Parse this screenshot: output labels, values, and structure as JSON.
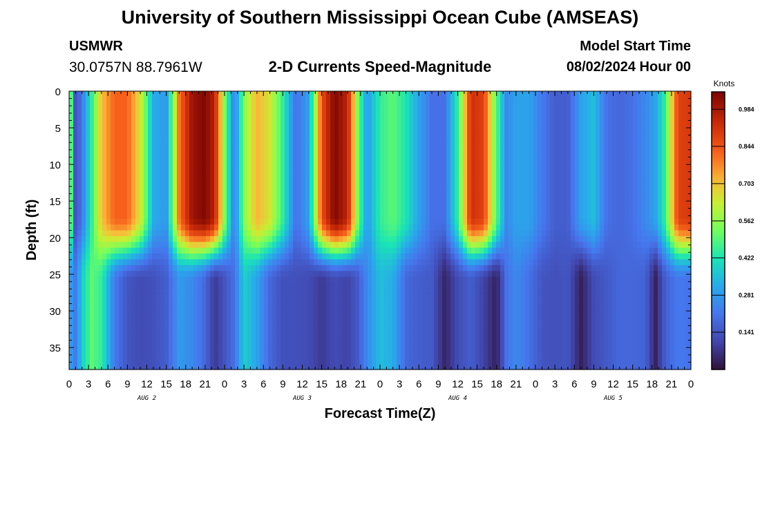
{
  "header": {
    "title": "University of Southern Mississippi Ocean Cube (AMSEAS)",
    "station_name": "USMWR",
    "station_coords": "30.0757N  88.7961W",
    "plot_title": "2-D Currents Speed-Magnitude",
    "model_start_label": "Model Start Time",
    "model_start_value": "08/02/2024 Hour 00"
  },
  "footer": {
    "title": "University of Southern Mississippi Ocean Cube (AMSEAS)"
  },
  "chart_data": {
    "type": "heatmap",
    "title": "2-D Currents Speed-Magnitude",
    "xlabel": "Forecast Time(Z)",
    "ylabel": "Depth (ft)",
    "x_range_hours": [
      0,
      96
    ],
    "y_range_ft": [
      0,
      38
    ],
    "x_ticks": [
      "0",
      "3",
      "6",
      "9",
      "12",
      "15",
      "18",
      "21",
      "0",
      "3",
      "6",
      "9",
      "12",
      "15",
      "18",
      "21",
      "0",
      "3",
      "6",
      "9",
      "12",
      "15",
      "18",
      "21",
      "0",
      "3",
      "6",
      "9",
      "12",
      "15",
      "18",
      "21",
      "0"
    ],
    "y_ticks": [
      "0",
      "5",
      "10",
      "15",
      "20",
      "25",
      "30",
      "35"
    ],
    "day_labels": [
      {
        "label": "AUG 2",
        "hour": 12
      },
      {
        "label": "AUG 3",
        "hour": 36
      },
      {
        "label": "AUG 4",
        "hour": 60
      },
      {
        "label": "AUG 5",
        "hour": 84
      }
    ],
    "colorbar": {
      "units": "Knots",
      "min": 0.0,
      "max": 1.05,
      "tick_values": [
        0.141,
        0.281,
        0.422,
        0.562,
        0.703,
        0.844,
        0.984
      ],
      "tick_labels": [
        "0.141",
        "0.281",
        "0.422",
        "0.562",
        "0.703",
        "0.844",
        "0.984"
      ]
    },
    "columns": [
      {
        "t": 0,
        "top": 0.65,
        "bot": 0.3
      },
      {
        "t": 1,
        "top": 0.12,
        "bot": 0.22
      },
      {
        "t": 2,
        "top": 0.22,
        "bot": 0.38
      },
      {
        "t": 3.5,
        "top": 0.45,
        "bot": 0.5
      },
      {
        "t": 5,
        "top": 0.7,
        "bot": 0.45
      },
      {
        "t": 7,
        "top": 0.82,
        "bot": 0.22
      },
      {
        "t": 9,
        "top": 0.82,
        "bot": 0.14
      },
      {
        "t": 11,
        "top": 0.65,
        "bot": 0.12
      },
      {
        "t": 13,
        "top": 0.32,
        "bot": 0.13
      },
      {
        "t": 15,
        "top": 0.28,
        "bot": 0.16
      },
      {
        "t": 17,
        "top": 0.8,
        "bot": 0.28
      },
      {
        "t": 19,
        "top": 1.0,
        "bot": 0.25
      },
      {
        "t": 21,
        "top": 1.04,
        "bot": 0.18
      },
      {
        "t": 22.5,
        "top": 0.95,
        "bot": 0.08
      },
      {
        "t": 24,
        "top": 0.55,
        "bot": 0.14
      },
      {
        "t": 25.5,
        "top": 0.22,
        "bot": 0.2
      },
      {
        "t": 27,
        "top": 0.55,
        "bot": 0.38
      },
      {
        "t": 29,
        "top": 0.72,
        "bot": 0.3
      },
      {
        "t": 31,
        "top": 0.65,
        "bot": 0.18
      },
      {
        "t": 33,
        "top": 0.45,
        "bot": 0.13
      },
      {
        "t": 35,
        "top": 0.2,
        "bot": 0.13
      },
      {
        "t": 37,
        "top": 0.3,
        "bot": 0.12
      },
      {
        "t": 39,
        "top": 0.85,
        "bot": 0.08
      },
      {
        "t": 41,
        "top": 1.04,
        "bot": 0.12
      },
      {
        "t": 43,
        "top": 0.95,
        "bot": 0.1
      },
      {
        "t": 44.5,
        "top": 0.55,
        "bot": 0.15
      },
      {
        "t": 46,
        "top": 0.28,
        "bot": 0.25
      },
      {
        "t": 48,
        "top": 0.45,
        "bot": 0.35
      },
      {
        "t": 50,
        "top": 0.5,
        "bot": 0.32
      },
      {
        "t": 52,
        "top": 0.42,
        "bot": 0.18
      },
      {
        "t": 54,
        "top": 0.3,
        "bot": 0.16
      },
      {
        "t": 56,
        "top": 0.2,
        "bot": 0.15
      },
      {
        "t": 58,
        "top": 0.2,
        "bot": 0.04
      },
      {
        "t": 60,
        "top": 0.45,
        "bot": 0.12
      },
      {
        "t": 62,
        "top": 0.92,
        "bot": 0.16
      },
      {
        "t": 64,
        "top": 0.88,
        "bot": 0.1
      },
      {
        "t": 66,
        "top": 0.5,
        "bot": 0.03
      },
      {
        "t": 67.5,
        "top": 0.25,
        "bot": 0.2
      },
      {
        "t": 69,
        "top": 0.3,
        "bot": 0.25
      },
      {
        "t": 71,
        "top": 0.3,
        "bot": 0.2
      },
      {
        "t": 73,
        "top": 0.22,
        "bot": 0.14
      },
      {
        "t": 75,
        "top": 0.16,
        "bot": 0.13
      },
      {
        "t": 77,
        "top": 0.16,
        "bot": 0.14
      },
      {
        "t": 79,
        "top": 0.3,
        "bot": 0.03
      },
      {
        "t": 81,
        "top": 0.35,
        "bot": 0.12
      },
      {
        "t": 83,
        "top": 0.2,
        "bot": 0.15
      },
      {
        "t": 85,
        "top": 0.18,
        "bot": 0.18
      },
      {
        "t": 87,
        "top": 0.2,
        "bot": 0.18
      },
      {
        "t": 89,
        "top": 0.25,
        "bot": 0.17
      },
      {
        "t": 90.5,
        "top": 0.3,
        "bot": 0.03
      },
      {
        "t": 92,
        "top": 0.45,
        "bot": 0.16
      },
      {
        "t": 94,
        "top": 0.88,
        "bot": 0.22
      },
      {
        "t": 96,
        "top": 0.9,
        "bot": 0.2
      }
    ]
  }
}
